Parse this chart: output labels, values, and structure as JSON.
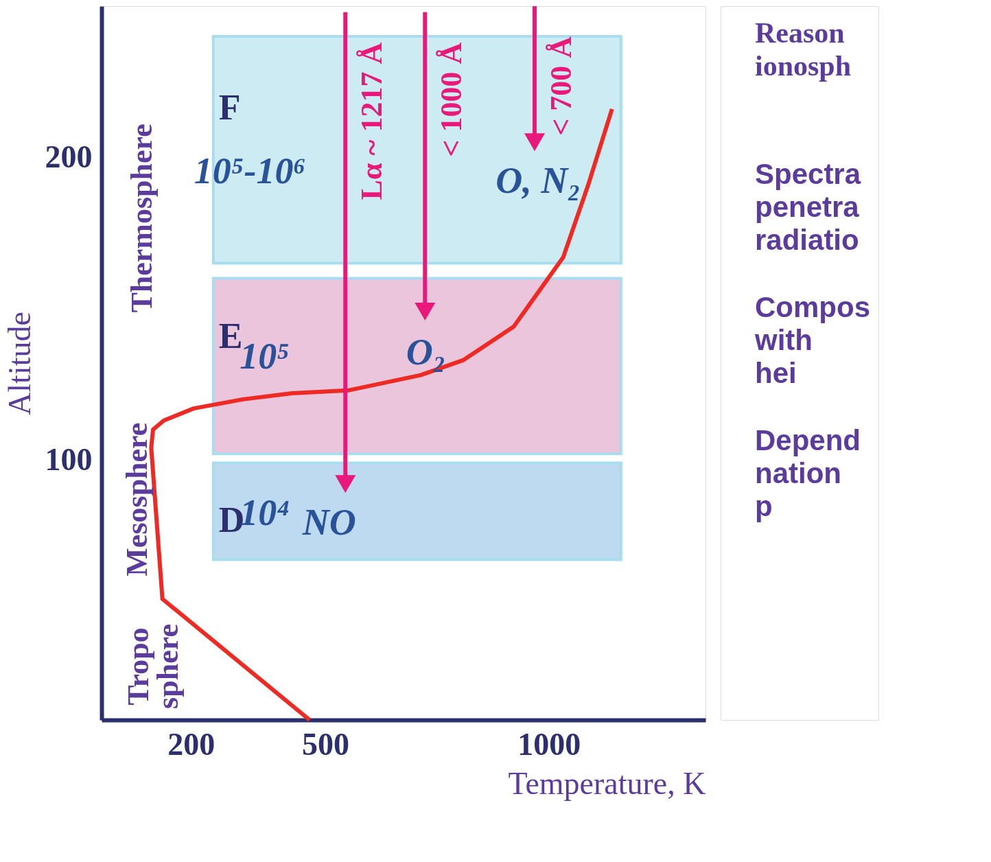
{
  "chart_data": {
    "type": "line",
    "xlabel": "Temperature, K",
    "ylabel": "Altitude",
    "xlim": [
      0,
      1350
    ],
    "ylim": [
      14,
      250
    ],
    "xticks": [
      200,
      500,
      1000
    ],
    "yticks": [
      100,
      200
    ],
    "series": [
      {
        "color": "#ee2a24",
        "x": [
          465,
          136,
          111,
          115,
          139,
          206,
          316,
          426,
          553,
          713,
          809,
          921,
          1032,
          1088,
          1141
        ],
        "values": [
          14,
          54,
          104,
          110,
          113,
          117,
          120,
          122,
          123,
          128,
          133,
          144,
          167,
          191,
          216
        ]
      },
      {
        "name": "Lα ~ 1217 Å",
        "color": "#e8197a",
        "x": [
          545,
          545
        ],
        "values": [
          248,
          92
        ]
      },
      {
        "name": "< 1000 Å",
        "color": "#e8197a",
        "x": [
          723,
          723
        ],
        "values": [
          248,
          149
        ]
      },
      {
        "name": "< 700 Å",
        "color": "#e8197a",
        "x": [
          968,
          968
        ],
        "values": [
          250,
          205
        ]
      }
    ],
    "bands": [
      {
        "axis": "y",
        "from": 165,
        "to": 240,
        "label": "F",
        "color": "#c4e8f0"
      },
      {
        "axis": "y",
        "from": 102,
        "to": 160,
        "label": "E",
        "color": "#e8bcd6"
      },
      {
        "axis": "y",
        "from": 67,
        "to": 99,
        "label": "D",
        "color": "#b3d4ef"
      }
    ],
    "annotations": [
      "10⁵-10⁶",
      "10⁵",
      "10⁴",
      "O, N₂",
      "O₂",
      "NO",
      "Thermosphere",
      "Mesosphere",
      "Tropo",
      "sphere",
      "Reason ionosph",
      "Spectra penetra radiatio",
      "Compos with hei",
      "Depend nation p"
    ]
  }
}
